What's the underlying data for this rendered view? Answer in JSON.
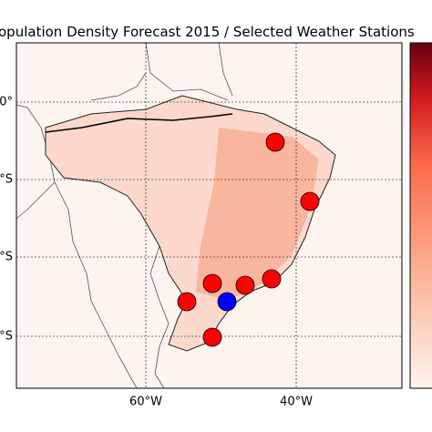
{
  "title": "opulation Density Forecast 2015 / Selected Weather Stations",
  "x_axis": {
    "labels": [
      "60°W",
      "40°W"
    ]
  },
  "y_axis": {
    "labels": [
      "0°",
      "°S",
      "°S",
      "°S"
    ]
  }
}
